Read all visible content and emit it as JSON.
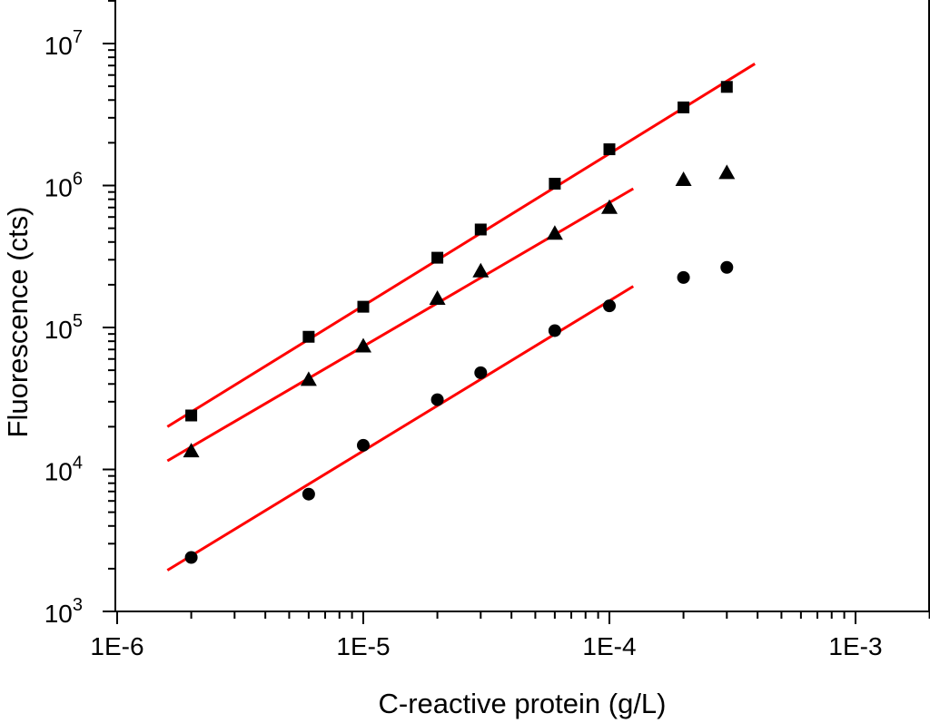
{
  "chart_data": {
    "type": "scatter",
    "title": "",
    "xlabel": "C-reactive protein (g/L)",
    "ylabel": "Fluorescence (cts)",
    "xscale": "log",
    "yscale": "log",
    "xlim": [
      1e-06,
      0.002
    ],
    "ylim": [
      1000,
      20000000
    ],
    "x_major_ticks": [
      {
        "value": 1e-06,
        "label": "1E-6"
      },
      {
        "value": 1e-05,
        "label": "1E-5"
      },
      {
        "value": 0.0001,
        "label": "1E-4"
      },
      {
        "value": 0.001,
        "label": "1E-3"
      }
    ],
    "y_major_ticks": [
      {
        "value": 1000,
        "base": "10",
        "exp": "3"
      },
      {
        "value": 10000,
        "base": "10",
        "exp": "4"
      },
      {
        "value": 100000,
        "base": "10",
        "exp": "5"
      },
      {
        "value": 1000000,
        "base": "10",
        "exp": "6"
      },
      {
        "value": 10000000,
        "base": "10",
        "exp": "7"
      }
    ],
    "series": [
      {
        "name": "squares",
        "marker": "square",
        "color": "#000000",
        "points": [
          [
            2e-06,
            24000
          ],
          [
            6e-06,
            86000
          ],
          [
            1e-05,
            140000
          ],
          [
            2e-05,
            310000
          ],
          [
            3e-05,
            490000
          ],
          [
            6e-05,
            1030000
          ],
          [
            0.0001,
            1800000
          ],
          [
            0.0002,
            3550000
          ],
          [
            0.0003,
            4950000
          ]
        ],
        "fit": {
          "x": [
            1.6e-06,
            0.00039
          ],
          "y": [
            20000,
            7200000
          ],
          "color": "#ff0000"
        }
      },
      {
        "name": "triangles",
        "marker": "triangle",
        "color": "#000000",
        "points": [
          [
            2e-06,
            13500
          ],
          [
            6e-06,
            43000
          ],
          [
            1e-05,
            74000
          ],
          [
            2e-05,
            160000
          ],
          [
            3e-05,
            250000
          ],
          [
            6e-05,
            460000
          ],
          [
            0.0001,
            700000
          ],
          [
            0.0002,
            1100000
          ],
          [
            0.0003,
            1230000
          ]
        ],
        "fit": {
          "x": [
            1.6e-06,
            0.000125
          ],
          "y": [
            11500,
            950000
          ],
          "color": "#ff0000"
        }
      },
      {
        "name": "circles",
        "marker": "circle",
        "color": "#000000",
        "points": [
          [
            2e-06,
            2400
          ],
          [
            6e-06,
            6700
          ],
          [
            1e-05,
            14800
          ],
          [
            2e-05,
            31000
          ],
          [
            3e-05,
            48000
          ],
          [
            6e-05,
            95000
          ],
          [
            0.0001,
            142000
          ],
          [
            0.0002,
            225000
          ],
          [
            0.0003,
            265000
          ]
        ],
        "fit": {
          "x": [
            1.6e-06,
            0.000125
          ],
          "y": [
            1950,
            195000
          ],
          "color": "#ff0000"
        }
      }
    ],
    "grid": false,
    "legend": "none"
  }
}
